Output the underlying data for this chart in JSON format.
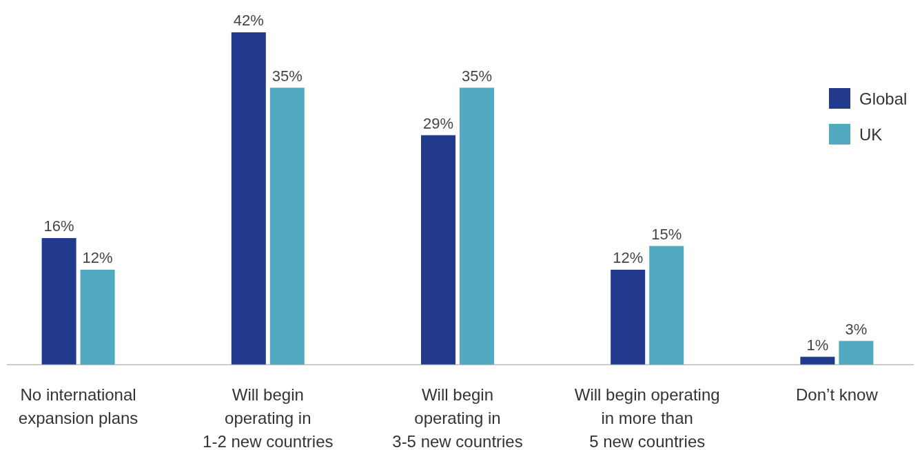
{
  "chart_data": {
    "type": "bar",
    "categories": [
      "No international\nexpansion plans",
      "Will begin\noperating in\n1-2 new countries",
      "Will begin\noperating in\n3-5 new countries",
      "Will begin operating\nin more than\n5 new countries",
      "Don’t know"
    ],
    "series": [
      {
        "name": "Global",
        "color": "#213a8e",
        "values": [
          16,
          42,
          29,
          12,
          1
        ],
        "value_labels": [
          "16%",
          "42%",
          "29%",
          "12%",
          "1%"
        ]
      },
      {
        "name": "UK",
        "color": "#52aac0",
        "values": [
          12,
          35,
          35,
          15,
          3
        ],
        "value_labels": [
          "12%",
          "35%",
          "35%",
          "15%",
          "3%"
        ]
      }
    ],
    "legend": "top right"
  }
}
